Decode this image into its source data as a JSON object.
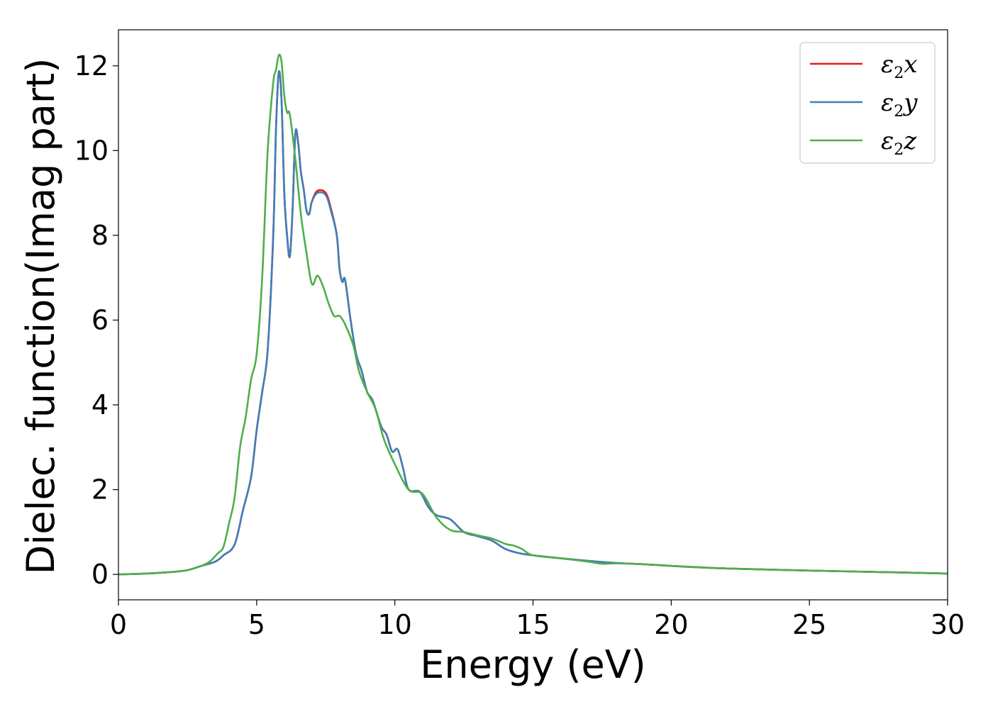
{
  "chart_data": {
    "type": "line",
    "title": "",
    "xlabel": "Energy (eV)",
    "ylabel": "Dielec. function(Imag part)",
    "xlim": [
      0,
      30
    ],
    "ylim": [
      -0.6,
      12.85
    ],
    "xticks": [
      0,
      5,
      10,
      15,
      20,
      25,
      30
    ],
    "yticks": [
      0,
      2,
      4,
      6,
      8,
      10,
      12
    ],
    "grid": false,
    "legend_position": "top-right",
    "series": [
      {
        "name": "ε2x",
        "legend_base": "ε",
        "legend_sub": "2",
        "legend_tail": "x",
        "color": "#e41a1c",
        "points": [
          [
            0,
            0
          ],
          [
            1,
            0.02
          ],
          [
            2,
            0.06
          ],
          [
            2.5,
            0.1
          ],
          [
            3,
            0.2
          ],
          [
            3.5,
            0.3
          ],
          [
            3.8,
            0.45
          ],
          [
            4.2,
            0.7
          ],
          [
            4.5,
            1.5
          ],
          [
            4.8,
            2.3
          ],
          [
            5.0,
            3.4
          ],
          [
            5.2,
            4.3
          ],
          [
            5.4,
            5.3
          ],
          [
            5.6,
            8.0
          ],
          [
            5.7,
            10.5
          ],
          [
            5.8,
            11.85
          ],
          [
            5.9,
            11.2
          ],
          [
            6.0,
            9.0
          ],
          [
            6.1,
            8.0
          ],
          [
            6.2,
            7.5
          ],
          [
            6.3,
            8.6
          ],
          [
            6.4,
            10.4
          ],
          [
            6.5,
            10.2
          ],
          [
            6.6,
            9.5
          ],
          [
            6.7,
            9.1
          ],
          [
            6.8,
            8.6
          ],
          [
            6.9,
            8.5
          ],
          [
            7.0,
            8.8
          ],
          [
            7.2,
            9.05
          ],
          [
            7.5,
            9.0
          ],
          [
            7.7,
            8.6
          ],
          [
            7.9,
            8.0
          ],
          [
            8.0,
            7.2
          ],
          [
            8.1,
            6.9
          ],
          [
            8.2,
            6.95
          ],
          [
            8.4,
            6.0
          ],
          [
            8.6,
            5.2
          ],
          [
            8.8,
            4.8
          ],
          [
            9.0,
            4.3
          ],
          [
            9.2,
            4.1
          ],
          [
            9.5,
            3.5
          ],
          [
            9.7,
            3.3
          ],
          [
            9.9,
            2.9
          ],
          [
            10.1,
            2.95
          ],
          [
            10.3,
            2.5
          ],
          [
            10.5,
            2.0
          ],
          [
            10.9,
            1.95
          ],
          [
            11.2,
            1.6
          ],
          [
            11.5,
            1.4
          ],
          [
            12.0,
            1.3
          ],
          [
            12.5,
            1.0
          ],
          [
            13.0,
            0.9
          ],
          [
            13.5,
            0.8
          ],
          [
            14.0,
            0.6
          ],
          [
            14.5,
            0.5
          ],
          [
            15.0,
            0.45
          ],
          [
            16.0,
            0.38
          ],
          [
            17.0,
            0.32
          ],
          [
            18.0,
            0.27
          ],
          [
            19.0,
            0.24
          ],
          [
            20.0,
            0.2
          ],
          [
            22.0,
            0.14
          ],
          [
            25.0,
            0.09
          ],
          [
            28.0,
            0.05
          ],
          [
            30.0,
            0.02
          ]
        ]
      },
      {
        "name": "ε2y",
        "legend_base": "ε",
        "legend_sub": "2",
        "legend_tail": "y",
        "color": "#3f7fb8",
        "points": [
          [
            0,
            0
          ],
          [
            1,
            0.02
          ],
          [
            2,
            0.06
          ],
          [
            2.5,
            0.1
          ],
          [
            3,
            0.2
          ],
          [
            3.5,
            0.3
          ],
          [
            3.8,
            0.45
          ],
          [
            4.2,
            0.7
          ],
          [
            4.5,
            1.5
          ],
          [
            4.8,
            2.3
          ],
          [
            5.0,
            3.4
          ],
          [
            5.2,
            4.3
          ],
          [
            5.4,
            5.3
          ],
          [
            5.6,
            8.0
          ],
          [
            5.7,
            10.5
          ],
          [
            5.8,
            11.85
          ],
          [
            5.9,
            11.2
          ],
          [
            6.0,
            9.0
          ],
          [
            6.1,
            8.0
          ],
          [
            6.2,
            7.5
          ],
          [
            6.3,
            8.6
          ],
          [
            6.4,
            10.4
          ],
          [
            6.5,
            10.2
          ],
          [
            6.6,
            9.5
          ],
          [
            6.7,
            9.1
          ],
          [
            6.8,
            8.6
          ],
          [
            6.9,
            8.5
          ],
          [
            7.0,
            8.8
          ],
          [
            7.2,
            9.0
          ],
          [
            7.5,
            8.95
          ],
          [
            7.7,
            8.55
          ],
          [
            7.9,
            8.0
          ],
          [
            8.0,
            7.2
          ],
          [
            8.1,
            6.9
          ],
          [
            8.2,
            6.95
          ],
          [
            8.4,
            6.0
          ],
          [
            8.6,
            5.2
          ],
          [
            8.8,
            4.8
          ],
          [
            9.0,
            4.3
          ],
          [
            9.2,
            4.1
          ],
          [
            9.5,
            3.5
          ],
          [
            9.7,
            3.3
          ],
          [
            9.9,
            2.9
          ],
          [
            10.1,
            2.95
          ],
          [
            10.3,
            2.5
          ],
          [
            10.5,
            2.0
          ],
          [
            10.9,
            1.95
          ],
          [
            11.2,
            1.6
          ],
          [
            11.5,
            1.4
          ],
          [
            12.0,
            1.3
          ],
          [
            12.5,
            1.0
          ],
          [
            13.0,
            0.9
          ],
          [
            13.5,
            0.8
          ],
          [
            14.0,
            0.6
          ],
          [
            14.5,
            0.5
          ],
          [
            15.0,
            0.45
          ],
          [
            16.0,
            0.38
          ],
          [
            17.0,
            0.32
          ],
          [
            18.0,
            0.27
          ],
          [
            19.0,
            0.24
          ],
          [
            20.0,
            0.2
          ],
          [
            22.0,
            0.14
          ],
          [
            25.0,
            0.09
          ],
          [
            28.0,
            0.05
          ],
          [
            30.0,
            0.02
          ]
        ]
      },
      {
        "name": "ε2z",
        "legend_base": "ε",
        "legend_sub": "2",
        "legend_tail": "z",
        "color": "#4daf4a",
        "points": [
          [
            0,
            0
          ],
          [
            1,
            0.02
          ],
          [
            2,
            0.06
          ],
          [
            2.5,
            0.1
          ],
          [
            3,
            0.2
          ],
          [
            3.3,
            0.3
          ],
          [
            3.6,
            0.5
          ],
          [
            3.8,
            0.65
          ],
          [
            4.0,
            1.2
          ],
          [
            4.2,
            1.8
          ],
          [
            4.4,
            3.0
          ],
          [
            4.6,
            3.7
          ],
          [
            4.8,
            4.6
          ],
          [
            5.0,
            5.2
          ],
          [
            5.2,
            7.0
          ],
          [
            5.4,
            10.0
          ],
          [
            5.6,
            11.6
          ],
          [
            5.7,
            11.9
          ],
          [
            5.8,
            12.25
          ],
          [
            5.9,
            12.1
          ],
          [
            6.0,
            11.3
          ],
          [
            6.1,
            10.9
          ],
          [
            6.2,
            10.85
          ],
          [
            6.4,
            9.8
          ],
          [
            6.6,
            8.5
          ],
          [
            6.8,
            7.6
          ],
          [
            7.0,
            6.85
          ],
          [
            7.2,
            7.05
          ],
          [
            7.4,
            6.8
          ],
          [
            7.6,
            6.4
          ],
          [
            7.8,
            6.1
          ],
          [
            8.0,
            6.1
          ],
          [
            8.2,
            5.9
          ],
          [
            8.5,
            5.4
          ],
          [
            8.7,
            4.8
          ],
          [
            9.0,
            4.3
          ],
          [
            9.3,
            3.9
          ],
          [
            9.6,
            3.2
          ],
          [
            10.0,
            2.6
          ],
          [
            10.5,
            2.0
          ],
          [
            11.0,
            1.9
          ],
          [
            11.5,
            1.35
          ],
          [
            12.0,
            1.05
          ],
          [
            12.5,
            1.0
          ],
          [
            13.0,
            0.92
          ],
          [
            13.5,
            0.85
          ],
          [
            14.0,
            0.72
          ],
          [
            14.3,
            0.68
          ],
          [
            14.6,
            0.6
          ],
          [
            15.0,
            0.45
          ],
          [
            16.0,
            0.38
          ],
          [
            17.0,
            0.3
          ],
          [
            17.5,
            0.25
          ],
          [
            18.0,
            0.26
          ],
          [
            19.0,
            0.24
          ],
          [
            20.0,
            0.2
          ],
          [
            21.0,
            0.17
          ],
          [
            22.0,
            0.14
          ],
          [
            25.0,
            0.09
          ],
          [
            28.0,
            0.05
          ],
          [
            30.0,
            0.02
          ]
        ]
      }
    ]
  }
}
